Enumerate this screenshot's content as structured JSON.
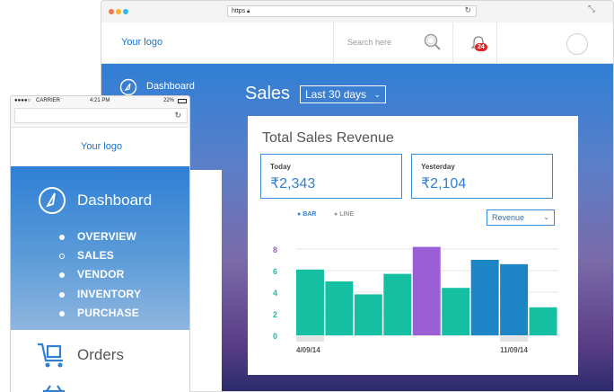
{
  "desktop": {
    "url": "https",
    "app_logo": "Your logo",
    "search_placeholder": "Search here",
    "notification_count": "24",
    "sidebar_label": "Dashboard",
    "page_title": "Sales",
    "date_range": "Last 30 days",
    "card_title": "Total Sales Revenue",
    "today": {
      "label": "Today",
      "value": "₹2,343"
    },
    "yesterday": {
      "label": "Yesterday",
      "value": "₹2,104"
    },
    "chart_toggle": {
      "bar": "BAR",
      "line": "LINE",
      "active": "bar"
    },
    "metric_select": "Revenue"
  },
  "mobile": {
    "status": {
      "carrier": "CARRIER",
      "time": "4:21 PM",
      "battery": "22%"
    },
    "app_logo": "Your logo",
    "nav_title": "Dashboard",
    "nav_items": [
      "OVERVIEW",
      "SALES",
      "VENDOR",
      "INVENTORY",
      "PURCHASE"
    ],
    "active_item": "SALES",
    "orders_label": "Orders"
  },
  "colors": {
    "accent": "#2f7fd5",
    "bar_teal": "#14bfa2",
    "bar_purple": "#9a5fd4",
    "bar_blue": "#1d84c6",
    "badge": "#e02424"
  },
  "chart_data": {
    "type": "bar",
    "title": "Total Sales Revenue",
    "yticks": [
      "0",
      "2",
      "4",
      "6",
      "8"
    ],
    "ylim": [
      0,
      8
    ],
    "xtick_labels": [
      {
        "index": 0,
        "label": "4/09/14"
      },
      {
        "index": 7,
        "label": "11/09/14"
      }
    ],
    "values": [
      6.1,
      5.0,
      3.8,
      5.7,
      8.2,
      4.4,
      7.0,
      6.6,
      2.6
    ],
    "bar_colors": [
      "#14bfa2",
      "#14bfa2",
      "#14bfa2",
      "#14bfa2",
      "#9a5fd4",
      "#14bfa2",
      "#1d84c6",
      "#1d84c6",
      "#14bfa2"
    ],
    "grid": true
  }
}
